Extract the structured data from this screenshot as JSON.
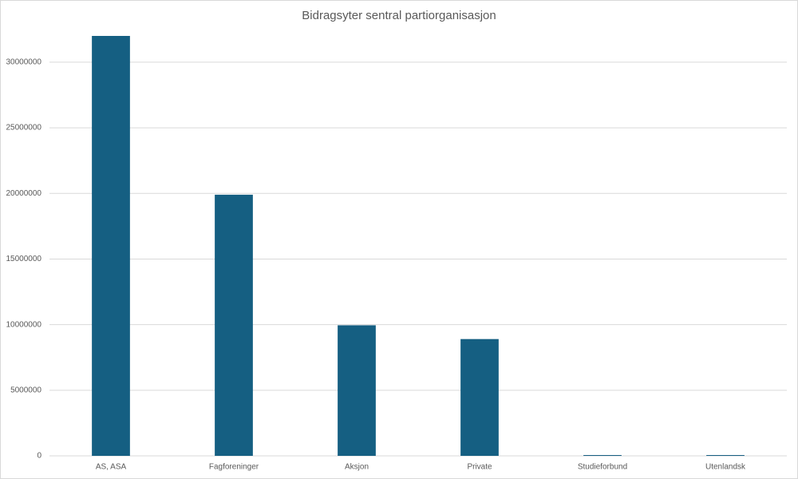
{
  "chart_data": {
    "type": "bar",
    "title": "Bidragsyter sentral partiorganisasjon",
    "categories": [
      "AS, ASA",
      "Fagforeninger",
      "Aksjon",
      "Private",
      "Studieforbund",
      "Utenlandsk"
    ],
    "values": [
      32000000,
      19900000,
      9950000,
      8900000,
      60000,
      60000
    ],
    "color": "#155f82",
    "ylim": [
      0,
      32000000
    ],
    "yticks": [
      0,
      5000000,
      10000000,
      15000000,
      20000000,
      25000000,
      30000000
    ],
    "grid": true
  }
}
